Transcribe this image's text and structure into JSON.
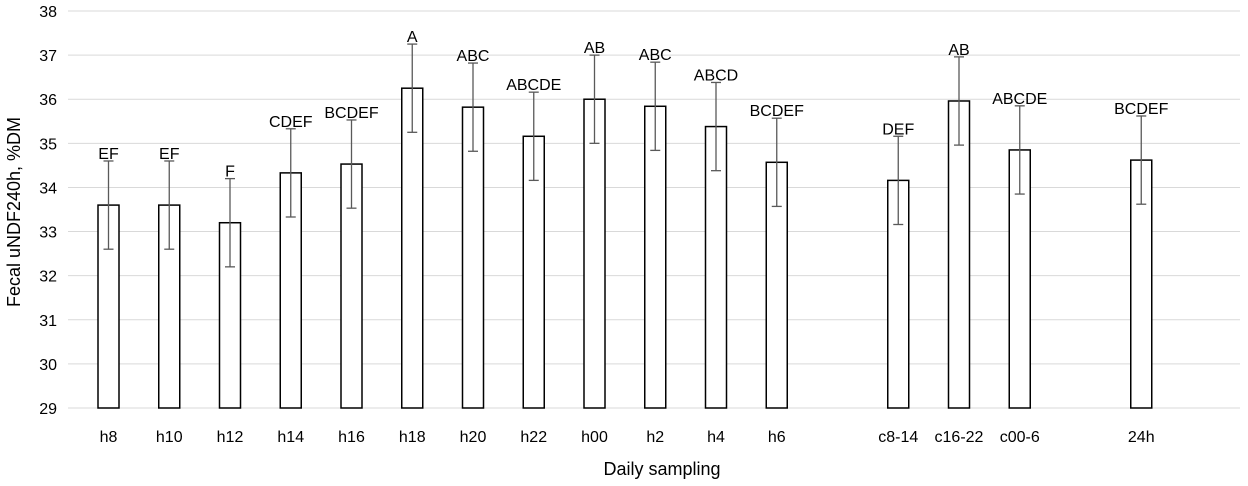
{
  "chart_data": {
    "type": "bar",
    "xlabel": "Daily sampling",
    "ylabel": "Fecal uNDF240h, %DM",
    "ylim": [
      29,
      38
    ],
    "yticks": [
      29,
      30,
      31,
      32,
      33,
      34,
      35,
      36,
      37,
      38
    ],
    "grid": "horizontal",
    "colors": {
      "bar_fill": "#ffffff",
      "bar_stroke": "#000000",
      "grid": "#d9d9d9",
      "error_bar": "#595959"
    },
    "categories": [
      "h8",
      "h10",
      "h12",
      "h14",
      "h16",
      "h18",
      "h20",
      "h22",
      "h00",
      "h2",
      "h4",
      "h6",
      "c8-14",
      "c16-22",
      "c00-6",
      "24h"
    ],
    "slots": [
      0,
      1,
      2,
      3,
      4,
      5,
      6,
      7,
      8,
      9,
      10,
      11,
      13,
      14,
      15,
      17
    ],
    "values": [
      33.6,
      33.6,
      33.2,
      34.33,
      34.53,
      36.25,
      35.82,
      35.16,
      36.0,
      35.84,
      35.38,
      34.57,
      34.16,
      35.96,
      34.85,
      34.62
    ],
    "error": [
      1.0,
      1.0,
      1.0,
      1.0,
      1.0,
      1.0,
      1.0,
      1.0,
      1.0,
      1.0,
      1.0,
      1.0,
      1.0,
      1.0,
      1.0,
      1.0
    ],
    "annotations": [
      "EF",
      "EF",
      "F",
      "CDEF",
      "BCDEF",
      "A",
      "ABC",
      "ABCDE",
      "AB",
      "ABC",
      "ABCD",
      "BCDEF",
      "DEF",
      "AB",
      "ABCDE",
      "BCDEF"
    ]
  }
}
